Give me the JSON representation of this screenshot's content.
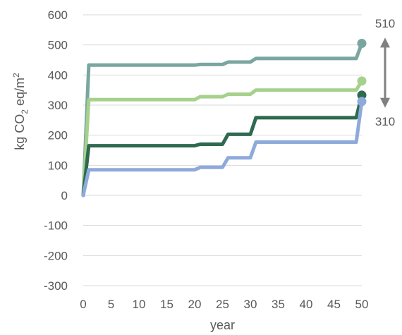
{
  "chart_data": {
    "type": "line",
    "xlabel": "year",
    "ylabel": "kg CO2 eq/m2",
    "xlim": [
      0,
      50
    ],
    "ylim": [
      -300,
      600
    ],
    "x_ticks": [
      0,
      5,
      10,
      15,
      20,
      25,
      30,
      35,
      40,
      45,
      50
    ],
    "y_ticks": [
      -300,
      -200,
      -100,
      0,
      100,
      200,
      300,
      400,
      500,
      600
    ],
    "grid": true,
    "series": [
      {
        "color": "#7aa6a0",
        "x": [
          0,
          1,
          20,
          21,
          25,
          26,
          30,
          31,
          49,
          50
        ],
        "y": [
          0,
          433,
          433,
          435,
          435,
          443,
          443,
          455,
          455,
          505
        ],
        "end_marker_y": 505
      },
      {
        "color": "#a6d18c",
        "x": [
          0,
          1,
          20,
          21,
          25,
          26,
          30,
          31,
          49,
          50
        ],
        "y": [
          0,
          318,
          318,
          328,
          328,
          336,
          336,
          350,
          350,
          380
        ],
        "end_marker_y": 380
      },
      {
        "color": "#2e6a50",
        "x": [
          0,
          1,
          20,
          21,
          25,
          26,
          30,
          31,
          49,
          50
        ],
        "y": [
          0,
          165,
          165,
          170,
          170,
          203,
          203,
          258,
          258,
          333
        ],
        "end_marker_y": 333
      },
      {
        "color": "#8eaadb",
        "x": [
          0,
          1,
          20,
          21,
          25,
          26,
          30,
          31,
          49,
          50
        ],
        "y": [
          0,
          85,
          85,
          93,
          93,
          125,
          125,
          177,
          177,
          312
        ],
        "end_marker_y": 312
      }
    ],
    "annotations": {
      "range_top": "510",
      "range_bottom": "310",
      "range_values": [
        510,
        310
      ],
      "arrow_color": "#808080"
    }
  }
}
